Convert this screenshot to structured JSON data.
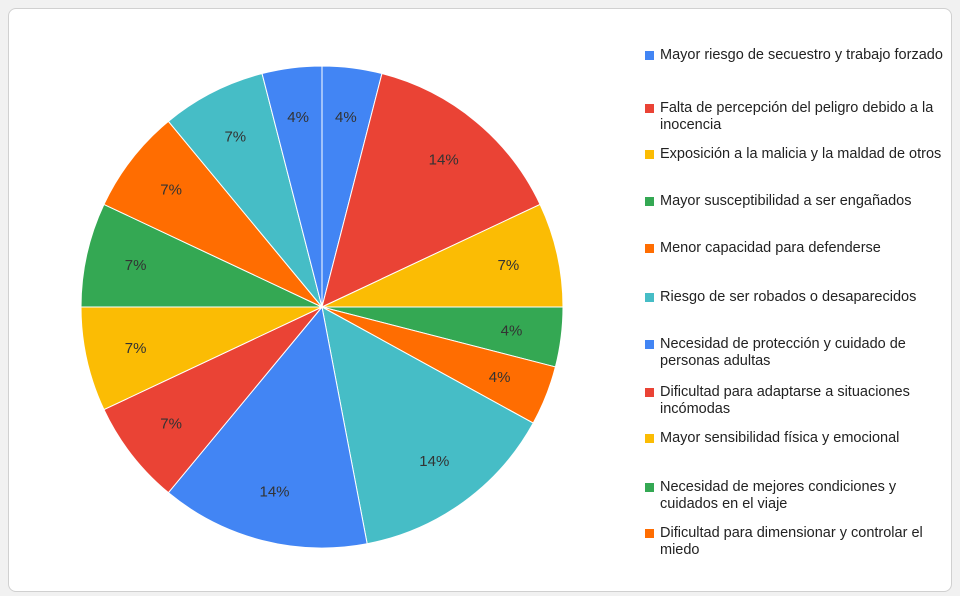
{
  "chart_data": {
    "type": "pie",
    "legend_position": "right",
    "start_angle_deg": 0,
    "direction": "clockwise",
    "slices": [
      {
        "label": "Mayor riesgo de secuestro y trabajo forzado",
        "value": 4,
        "display": "4%",
        "color": "#4285f4"
      },
      {
        "label": "Falta de percepción del peligro debido a la inocencia",
        "value": 14,
        "display": "14%",
        "color": "#ea4335"
      },
      {
        "label": "Exposición a la malicia y la maldad de otros",
        "value": 7,
        "display": "7%",
        "color": "#fbbc04"
      },
      {
        "label": "Mayor susceptibilidad a ser engañados",
        "value": 4,
        "display": "4%",
        "color": "#34a853"
      },
      {
        "label": "Menor capacidad para defenderse",
        "value": 4,
        "display": "4%",
        "color": "#ff6d01"
      },
      {
        "label": "Riesgo de ser robados o desaparecidos",
        "value": 14,
        "display": "14%",
        "color": "#46bdc6"
      },
      {
        "label": "Necesidad de protección y cuidado de personas adultas",
        "value": 14,
        "display": "14%",
        "color": "#4285f4"
      },
      {
        "label": "Dificultad para adaptarse a situaciones incómodas",
        "value": 7,
        "display": "7%",
        "color": "#ea4335"
      },
      {
        "label": "Mayor sensibilidad física y emocional",
        "value": 7,
        "display": "7%",
        "color": "#fbbc04"
      },
      {
        "label": "Necesidad de mejores condiciones y cuidados en el viaje",
        "value": 7,
        "display": "7%",
        "color": "#34a853"
      },
      {
        "label": "Dificultad para dimensionar y controlar el miedo",
        "value": 7,
        "display": "7%",
        "color": "#ff6d01"
      },
      {
        "label": "",
        "value": 7,
        "display": "7%",
        "color": "#46bdc6"
      },
      {
        "label": "",
        "value": 4,
        "display": "4%",
        "color": "#4285f4"
      }
    ]
  }
}
